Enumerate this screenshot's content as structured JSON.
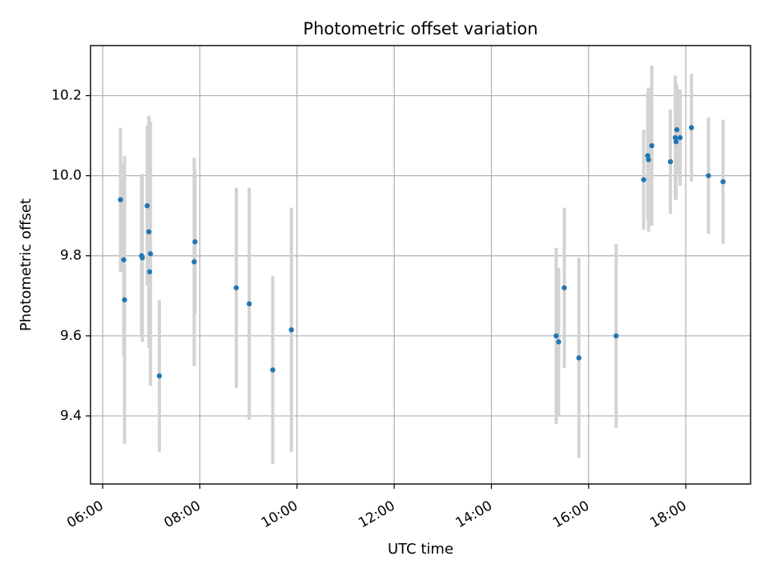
{
  "colors": {
    "point": "#1f77b4",
    "errorbar": "#d3d3d3",
    "grid": "#b0b0b0"
  },
  "chart_data": {
    "type": "scatter",
    "title": "Photometric offset variation",
    "xlabel": "UTC time",
    "ylabel": "Photometric offset",
    "x_is_time": true,
    "xlim": [
      "05:45",
      "19:20"
    ],
    "ylim": [
      9.23,
      10.325
    ],
    "xticks": [
      "06:00",
      "08:00",
      "10:00",
      "12:00",
      "14:00",
      "16:00",
      "18:00"
    ],
    "yticks": [
      9.4,
      9.6,
      9.8,
      10.0,
      10.2
    ],
    "ytick_labels": [
      "9.4",
      "9.6",
      "9.8",
      "10.0",
      "10.2"
    ],
    "grid": true,
    "points": [
      {
        "x": "06:22",
        "y": 9.94,
        "err": 0.18
      },
      {
        "x": "06:26",
        "y": 9.79,
        "err": 0.24
      },
      {
        "x": "06:27",
        "y": 9.69,
        "err": 0.36
      },
      {
        "x": "06:48",
        "y": 9.8,
        "err": 0.2
      },
      {
        "x": "06:49",
        "y": 9.795,
        "err": 0.21
      },
      {
        "x": "06:55",
        "y": 9.925,
        "err": 0.2
      },
      {
        "x": "06:57",
        "y": 9.86,
        "err": 0.29
      },
      {
        "x": "06:58",
        "y": 9.76,
        "err": 0.19
      },
      {
        "x": "06:59",
        "y": 9.805,
        "err": 0.33
      },
      {
        "x": "07:10",
        "y": 9.5,
        "err": 0.19
      },
      {
        "x": "07:53",
        "y": 9.785,
        "err": 0.26
      },
      {
        "x": "07:54",
        "y": 9.835,
        "err": 0.18
      },
      {
        "x": "08:45",
        "y": 9.72,
        "err": 0.25
      },
      {
        "x": "09:01",
        "y": 9.68,
        "err": 0.29
      },
      {
        "x": "09:30",
        "y": 9.515,
        "err": 0.235
      },
      {
        "x": "09:53",
        "y": 9.615,
        "err": 0.305
      },
      {
        "x": "15:20",
        "y": 9.6,
        "err": 0.22
      },
      {
        "x": "15:23",
        "y": 9.585,
        "err": 0.185
      },
      {
        "x": "15:30",
        "y": 9.72,
        "err": 0.2
      },
      {
        "x": "15:48",
        "y": 9.545,
        "err": 0.25
      },
      {
        "x": "16:34",
        "y": 9.6,
        "err": 0.23
      },
      {
        "x": "17:08",
        "y": 9.99,
        "err": 0.125
      },
      {
        "x": "17:13",
        "y": 10.05,
        "err": 0.16
      },
      {
        "x": "17:14",
        "y": 10.04,
        "err": 0.18
      },
      {
        "x": "17:18",
        "y": 10.075,
        "err": 0.2
      },
      {
        "x": "17:41",
        "y": 10.035,
        "err": 0.13
      },
      {
        "x": "17:47",
        "y": 10.095,
        "err": 0.155
      },
      {
        "x": "17:48",
        "y": 10.085,
        "err": 0.145
      },
      {
        "x": "17:49",
        "y": 10.115,
        "err": 0.11
      },
      {
        "x": "17:53",
        "y": 10.095,
        "err": 0.12
      },
      {
        "x": "18:07",
        "y": 10.12,
        "err": 0.135
      },
      {
        "x": "18:28",
        "y": 10.0,
        "err": 0.145
      },
      {
        "x": "18:46",
        "y": 9.985,
        "err": 0.155
      }
    ]
  }
}
